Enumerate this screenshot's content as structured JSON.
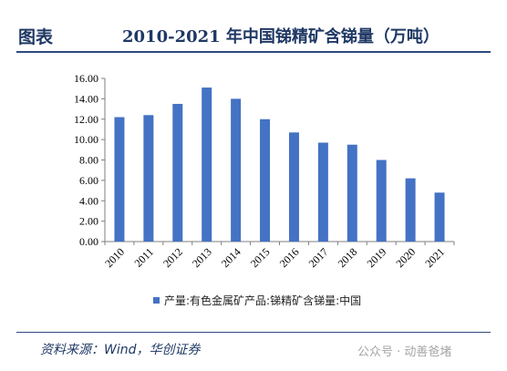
{
  "header": {
    "label": "图表",
    "title": "2010-2021 年中国锑精矿含锑量（万吨）"
  },
  "chart_data": {
    "type": "bar",
    "categories": [
      "2010",
      "2011",
      "2012",
      "2013",
      "2014",
      "2015",
      "2016",
      "2017",
      "2018",
      "2019",
      "2020",
      "2021"
    ],
    "series": [
      {
        "name": "产量:有色金属矿产品:锑精矿含锑量:中国",
        "values": [
          12.2,
          12.4,
          13.5,
          15.1,
          14.0,
          12.0,
          10.7,
          9.7,
          9.5,
          8.0,
          6.2,
          4.8
        ]
      }
    ],
    "ylim": [
      0,
      16
    ],
    "yticks": [
      "0.00",
      "2.00",
      "4.00",
      "6.00",
      "8.00",
      "10.00",
      "12.00",
      "14.00",
      "16.00"
    ],
    "color": "#4472c4",
    "legend_position": "bottom",
    "grid": false
  },
  "footer": {
    "source": "资料来源：Wind，华创证券",
    "watermark": "公众号 · 动善爸堵"
  }
}
